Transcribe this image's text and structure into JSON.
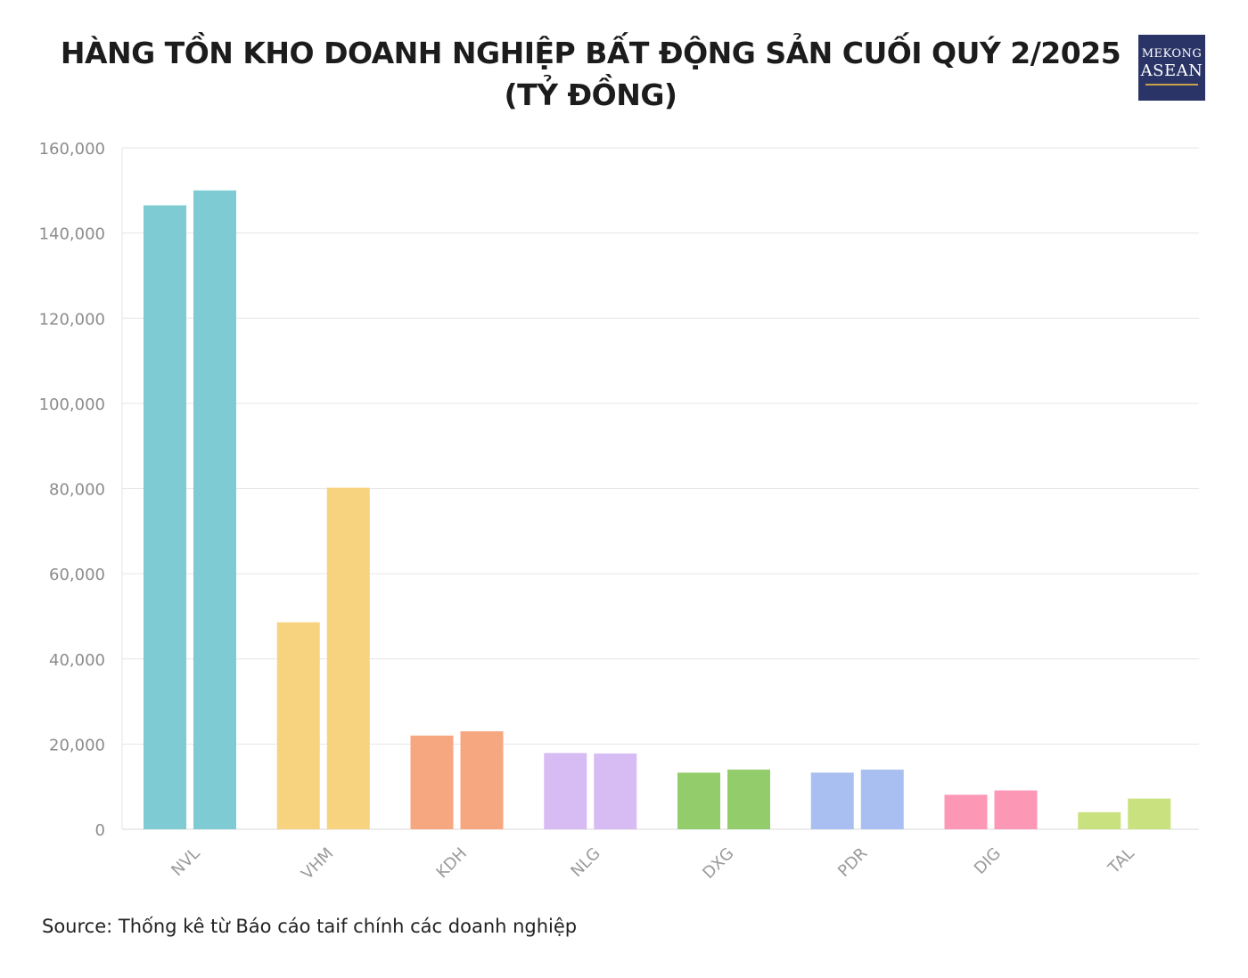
{
  "title": "HÀNG TỒN KHO DOANH NGHIỆP BẤT ĐỘNG SẢN CUỐI QUÝ 2/2025 (TỶ ĐỒNG)",
  "logo": {
    "line1": "MEKONG",
    "line2": "ASEAN",
    "colors": {
      "background": "#2b3467",
      "text": "#ffffff"
    }
  },
  "source": "Source: Thống kê từ Báo cáo taif chính các doanh nghiệp",
  "chart_data": {
    "type": "bar",
    "title": "HÀNG TỒN KHO DOANH NGHIỆP BẤT ĐỘNG SẢN CUỐI QUÝ 2/2025 (TỶ ĐỒNG)",
    "categories": [
      "NVL",
      "VHM",
      "KDH",
      "NLG",
      "DXG",
      "PDR",
      "DIG",
      "TAL"
    ],
    "series": [
      {
        "values": [
          146500,
          48600,
          22000,
          17900,
          13300,
          13300,
          8100,
          4000
        ]
      },
      {
        "values": [
          150000,
          80200,
          23000,
          17800,
          14000,
          14000,
          9100,
          7200
        ]
      }
    ],
    "category_colors": [
      "#7ecbd3",
      "#f7d27f",
      "#f7a77f",
      "#d7bbf3",
      "#93cd6b",
      "#a9bff1",
      "#fc97b6",
      "#c9e27f"
    ],
    "ylim": [
      0,
      160000
    ],
    "yticks": [
      0,
      20000,
      40000,
      60000,
      80000,
      100000,
      120000,
      140000,
      160000
    ],
    "ytick_labels": [
      "0",
      "20,000",
      "40,000",
      "60,000",
      "80,000",
      "100,000",
      "120,000",
      "140,000",
      "160,000"
    ],
    "grid": true,
    "legend": "none",
    "xlabel": "",
    "ylabel": ""
  }
}
